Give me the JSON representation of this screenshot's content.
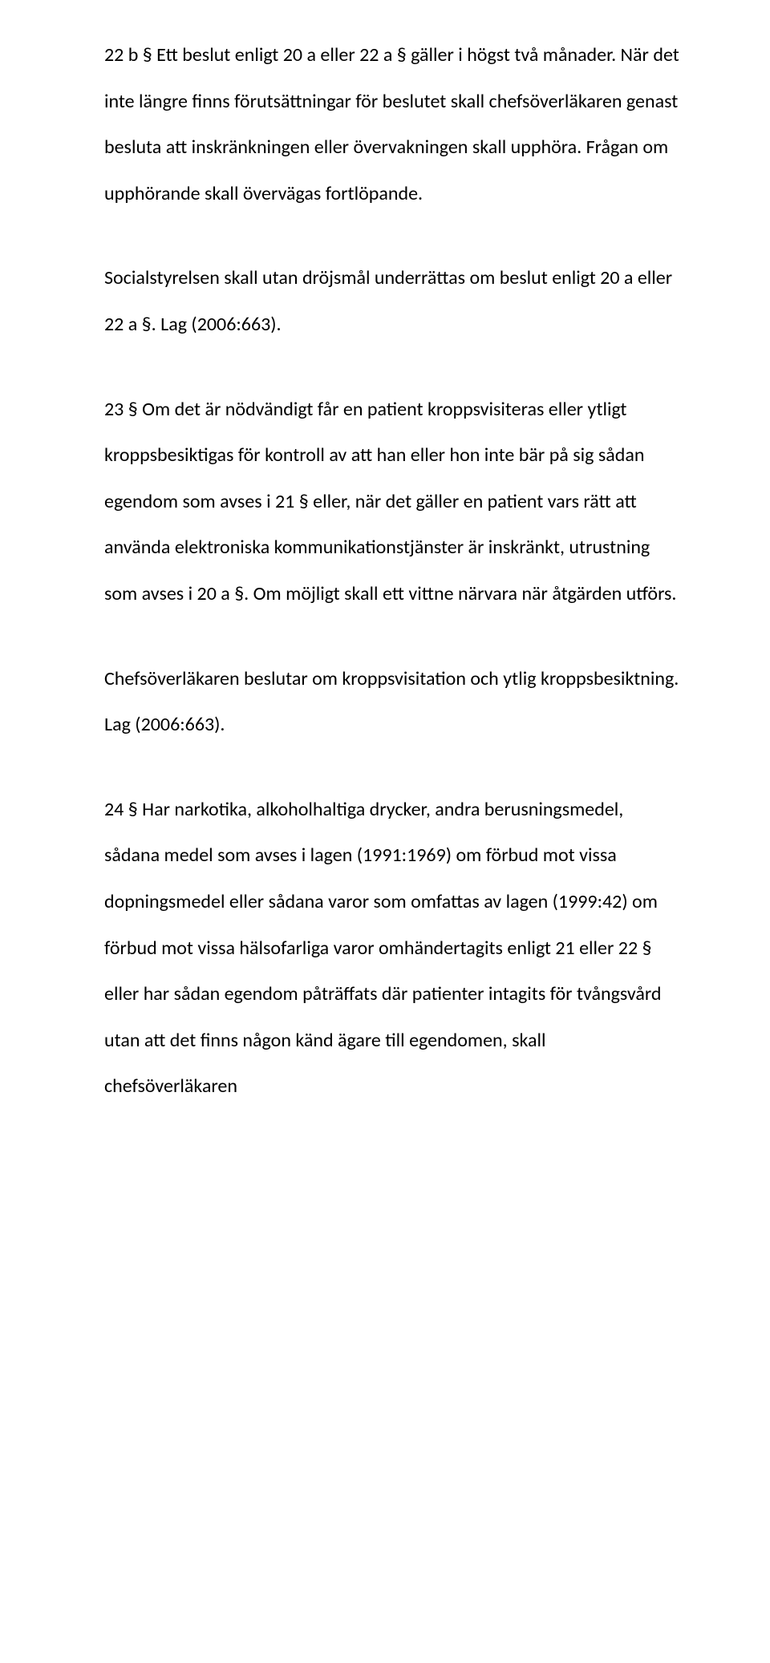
{
  "paragraphs": {
    "p1": "22 b § Ett beslut enligt 20 a eller 22 a § gäller i högst två månader. När det inte längre finns förutsättningar för beslutet skall chefsöverläkaren genast besluta att inskränkningen eller övervakningen skall upphöra. Frågan om upphörande skall övervägas fortlöpande.",
    "p2": "Socialstyrelsen skall utan dröjsmål underrättas om beslut enligt 20 a eller 22 a §. Lag (2006:663).",
    "p3": "23 § Om det är nödvändigt får en patient kroppsvisiteras eller ytligt kroppsbesiktigas för kontroll av att han eller hon inte bär på sig sådan egendom som avses i 21 § eller, när det gäller en patient vars rätt att använda elektroniska kommunikationstjänster är inskränkt, utrustning som avses i 20 a §. Om möjligt skall ett vittne närvara när åtgärden utförs.",
    "p4": "Chefsöverläkaren beslutar om kroppsvisitation och ytlig kroppsbesiktning. Lag (2006:663).",
    "p5": "24 § Har narkotika, alkoholhaltiga drycker, andra berusningsmedel, sådana medel som avses i lagen (1991:1969) om förbud mot vissa dopningsmedel eller sådana varor som omfattas av lagen (1999:42) om förbud mot vissa hälsofarliga varor omhändertagits enligt 21 eller 22 § eller har sådan egendom påträffats där patienter intagits för tvångsvård utan att det finns någon känd ägare till egendomen, skall chefsöverläkaren"
  }
}
